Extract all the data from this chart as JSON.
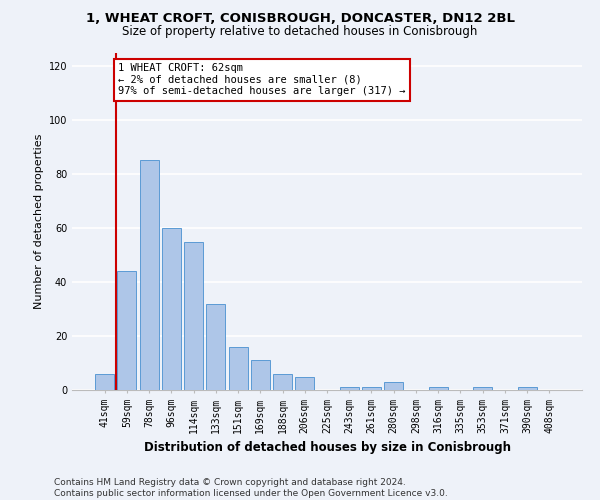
{
  "title": "1, WHEAT CROFT, CONISBROUGH, DONCASTER, DN12 2BL",
  "subtitle": "Size of property relative to detached houses in Conisbrough",
  "xlabel": "Distribution of detached houses by size in Conisbrough",
  "ylabel": "Number of detached properties",
  "categories": [
    "41sqm",
    "59sqm",
    "78sqm",
    "96sqm",
    "114sqm",
    "133sqm",
    "151sqm",
    "169sqm",
    "188sqm",
    "206sqm",
    "225sqm",
    "243sqm",
    "261sqm",
    "280sqm",
    "298sqm",
    "316sqm",
    "335sqm",
    "353sqm",
    "371sqm",
    "390sqm",
    "408sqm"
  ],
  "values": [
    6,
    44,
    85,
    60,
    55,
    32,
    16,
    11,
    6,
    5,
    0,
    1,
    1,
    3,
    0,
    1,
    0,
    1,
    0,
    1,
    0
  ],
  "bar_color": "#aec6e8",
  "bar_edge_color": "#5b9bd5",
  "ylim": [
    0,
    125
  ],
  "yticks": [
    0,
    20,
    40,
    60,
    80,
    100,
    120
  ],
  "annotation_title": "1 WHEAT CROFT: 62sqm",
  "annotation_line1": "← 2% of detached houses are smaller (8)",
  "annotation_line2": "97% of semi-detached houses are larger (317) →",
  "vline_x_index": 1,
  "annotation_box_color": "#ffffff",
  "annotation_box_edge": "#cc0000",
  "vline_color": "#cc0000",
  "footer1": "Contains HM Land Registry data © Crown copyright and database right 2024.",
  "footer2": "Contains public sector information licensed under the Open Government Licence v3.0.",
  "background_color": "#eef2f9",
  "grid_color": "#ffffff",
  "title_fontsize": 9.5,
  "subtitle_fontsize": 8.5,
  "axis_label_fontsize": 8,
  "tick_fontsize": 7,
  "footer_fontsize": 6.5,
  "annotation_fontsize": 7.5
}
